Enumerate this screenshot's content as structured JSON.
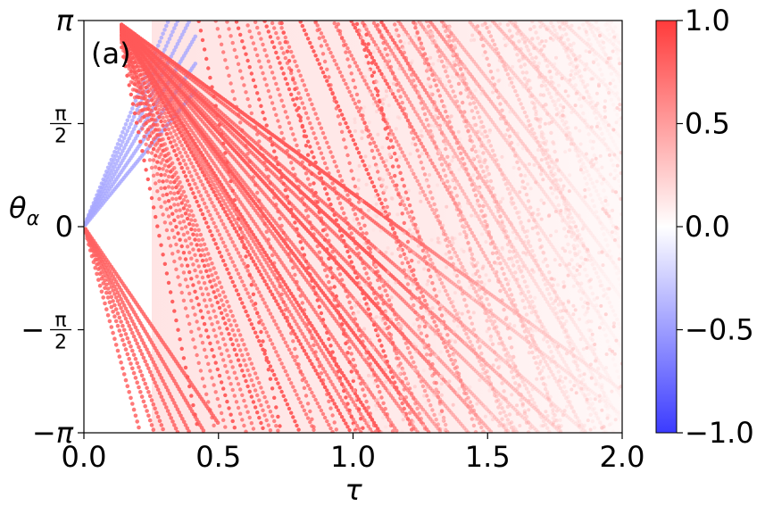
{
  "chart_data": {
    "type": "scatter",
    "panel_label": "(a)",
    "xlabel": "τ",
    "ylabel": "θ",
    "ylabel_sub": "α",
    "xlim": [
      0.0,
      2.0
    ],
    "ylim": [
      -3.14159,
      3.14159
    ],
    "x_ticks": [
      {
        "value": 0.0,
        "label": "0.0"
      },
      {
        "value": 0.5,
        "label": "0.5"
      },
      {
        "value": 1.0,
        "label": "1.0"
      },
      {
        "value": 1.5,
        "label": "1.5"
      },
      {
        "value": 2.0,
        "label": "2.0"
      }
    ],
    "y_ticks": [
      {
        "value": 3.14159,
        "label": "π",
        "kind": "sym"
      },
      {
        "value": 1.5708,
        "num": "π",
        "den": "2",
        "sign": "",
        "kind": "frac"
      },
      {
        "value": 0.0,
        "label": "0",
        "kind": "plain"
      },
      {
        "value": -1.5708,
        "num": "π",
        "den": "2",
        "sign": "−",
        "kind": "frac"
      },
      {
        "value": -3.14159,
        "label": "−π",
        "kind": "sym"
      }
    ],
    "colorbar": {
      "colormap": "bwr",
      "range": [
        -1.0,
        1.0
      ],
      "ticks": [
        {
          "value": 1.0,
          "label": "1.0"
        },
        {
          "value": 0.5,
          "label": "0.5"
        },
        {
          "value": 0.0,
          "label": "0.0"
        },
        {
          "value": -0.5,
          "label": "−0.5"
        },
        {
          "value": -1.0,
          "label": "−1.0"
        }
      ]
    },
    "series": [
      {
        "role": "wrapping trajectories",
        "slopes_per_tau": [
          -20.5,
          -17.0,
          -15.3,
          -14.1,
          -13.0,
          -12.2,
          -11.4,
          -10.9,
          -10.4,
          -9.2,
          -8.5,
          -7.8,
          -7.2,
          -6.9,
          -6.6,
          -6.4,
          -6.0,
          -5.6,
          -5.4,
          -5.2,
          -4.8,
          -4.5,
          -4.3,
          -4.0,
          -3.8,
          -3.6,
          -3.2,
          -3.0
        ],
        "color_value": 0.85
      },
      {
        "role": "upper blue fan",
        "slopes_per_tau": [
          10.0,
          9.0,
          8.0,
          7.0,
          6.0,
          5.0
        ],
        "x_max": 0.42,
        "color_value": -0.45
      },
      {
        "role": "lower red fan",
        "slopes_per_tau": [
          -15.0,
          -12.0,
          -10.5,
          -9.0,
          -8.0,
          -7.0,
          -6.0
        ],
        "color_value": 0.8
      }
    ],
    "grid": false
  }
}
